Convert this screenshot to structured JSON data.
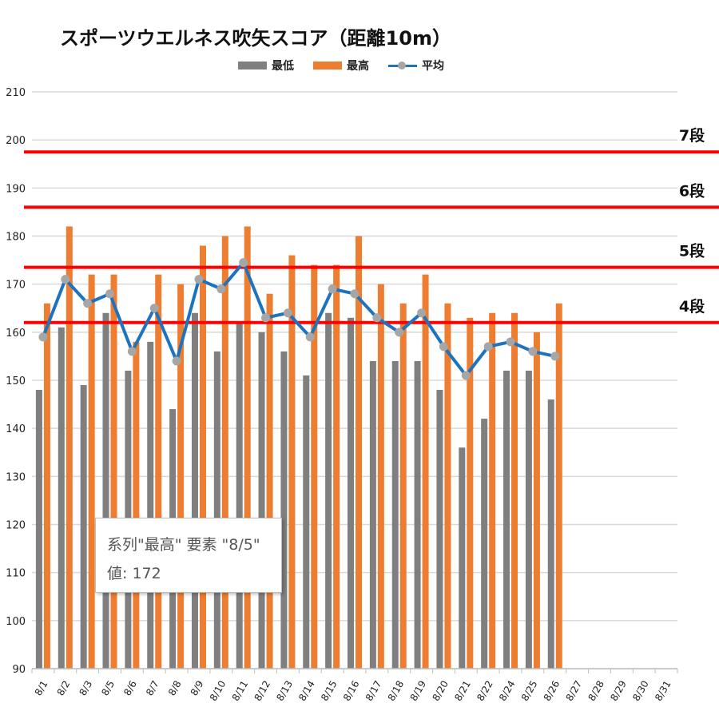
{
  "chart_data": {
    "type": "bar",
    "title": "スポーツウエルネス吹矢スコア（距離10m）",
    "categories": [
      "8/1",
      "8/2",
      "8/3",
      "8/5",
      "8/6",
      "8/7",
      "8/8",
      "8/9",
      "8/10",
      "8/11",
      "8/12",
      "8/13",
      "8/14",
      "8/15",
      "8/16",
      "8/17",
      "8/18",
      "8/19",
      "8/20",
      "8/21",
      "8/22",
      "8/24",
      "8/25",
      "8/26",
      "8/27",
      "8/28",
      "8/29",
      "8/30",
      "8/31"
    ],
    "series": [
      {
        "name": "最低",
        "type": "bar",
        "color": "#7f7f7f",
        "values": [
          148,
          161,
          149,
          164,
          152,
          158,
          144,
          164,
          156,
          162,
          160,
          156,
          151,
          164,
          163,
          154,
          154,
          154,
          148,
          136,
          142,
          152,
          152,
          146,
          null,
          null,
          null,
          null,
          null
        ]
      },
      {
        "name": "最高",
        "type": "bar",
        "color": "#ed7d31",
        "values": [
          166,
          182,
          172,
          172,
          158,
          172,
          170,
          178,
          180,
          182,
          168,
          176,
          174,
          174,
          180,
          170,
          166,
          172,
          166,
          163,
          164,
          164,
          160,
          166,
          null,
          null,
          null,
          null,
          null
        ]
      },
      {
        "name": "平均",
        "type": "line",
        "color": "#1e73be",
        "marker_color": "#a6a6a6",
        "values": [
          159,
          171,
          166,
          168,
          156,
          165,
          154,
          171,
          169,
          174.5,
          163,
          164,
          159,
          169,
          168,
          163,
          160,
          164,
          157,
          151,
          157,
          158,
          156,
          155,
          null,
          null,
          null,
          null,
          null
        ]
      }
    ],
    "ylim": [
      90,
      210
    ],
    "yticks": [
      "90",
      "100",
      "110",
      "120",
      "130",
      "140",
      "150",
      "160",
      "170",
      "180",
      "190",
      "200",
      "210"
    ],
    "grid": true,
    "legend_position": "top",
    "reference_lines": [
      {
        "label": "4段",
        "value": 162,
        "color": "#ff0000"
      },
      {
        "label": "5段",
        "value": 173.5,
        "color": "#ff0000"
      },
      {
        "label": "6段",
        "value": 186,
        "color": "#ff0000"
      },
      {
        "label": "7段",
        "value": 197.5,
        "color": "#ff0000"
      }
    ],
    "tooltip": {
      "line1": "系列\"最高\" 要素 \"8/5\"",
      "line2": "値: 172"
    }
  }
}
